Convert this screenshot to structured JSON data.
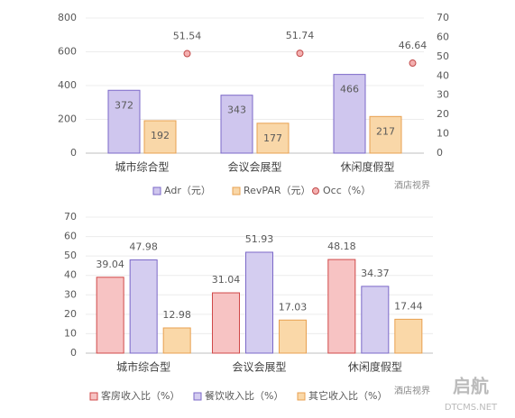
{
  "chart_data": [
    {
      "type": "bar",
      "categories": [
        "城市综合型",
        "会议会展型",
        "休闲度假型"
      ],
      "series": [
        {
          "name": "Adr（元）",
          "color": "#cfc6ee",
          "border": "#7b68c8",
          "values": [
            372,
            343,
            466
          ]
        },
        {
          "name": "RevPAR（元）",
          "color": "#f9d7a8",
          "border": "#e8a050",
          "values": [
            192,
            177,
            217
          ]
        },
        {
          "name": "Occ（%）",
          "type": "scatter",
          "axis": "y2",
          "color": "#f4b0b0",
          "border": "#c04848",
          "values": [
            51.54,
            51.74,
            46.64
          ]
        }
      ],
      "ylim": [
        0,
        800
      ],
      "yticks": [
        0,
        200,
        400,
        600,
        800
      ],
      "y2lim": [
        0,
        70
      ],
      "y2ticks": [
        0,
        10,
        20,
        30,
        40,
        50,
        60,
        70
      ],
      "grid": true,
      "legend": "bottom",
      "watermark": "酒店视界"
    },
    {
      "type": "bar",
      "categories": [
        "城市综合型",
        "会议会展型",
        "休闲度假型"
      ],
      "series": [
        {
          "name": "客房收入比（%）",
          "color": "#f7c3c3",
          "border": "#d04848",
          "values": [
            39.04,
            31.04,
            48.18
          ]
        },
        {
          "name": "餐饮收入比（%）",
          "color": "#d4cdf0",
          "border": "#7b68c8",
          "values": [
            47.98,
            51.93,
            34.37
          ]
        },
        {
          "name": "其它收入比（%）",
          "color": "#fad8a8",
          "border": "#e8a050",
          "values": [
            12.98,
            17.03,
            17.44
          ]
        }
      ],
      "ylim": [
        0,
        70
      ],
      "yticks": [
        0,
        10,
        20,
        30,
        40,
        50,
        60,
        70
      ],
      "grid": true,
      "legend": "bottom",
      "watermark": "酒店视界"
    }
  ],
  "site_watermark": {
    "brand": "启航",
    "site": "DTCMS.NET"
  }
}
